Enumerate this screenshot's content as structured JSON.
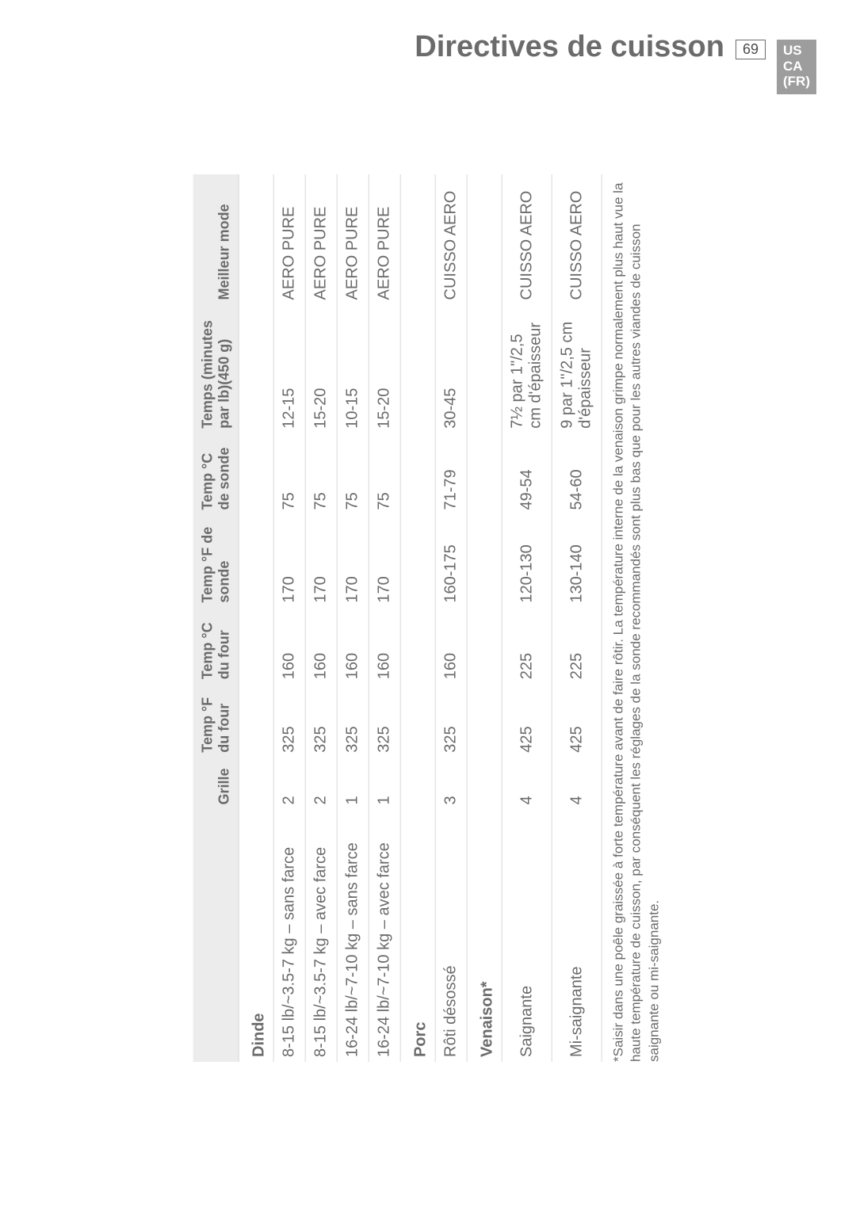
{
  "header": {
    "title": "Directives de cuisson",
    "page_number": "69",
    "locale_lines": [
      "US",
      "CA",
      "(FR)"
    ]
  },
  "columns": {
    "name": "",
    "grille": "Grille",
    "temp_f": "Temp °F du four",
    "temp_c": "Temp °C du four",
    "probe_f": "Temp °F de sonde",
    "probe_c": "Temp °C de sonde",
    "time": "Temps (minutes par lb)(450 g)",
    "mode": "Meilleur mode"
  },
  "sections": [
    {
      "title": "Dinde",
      "rows": [
        {
          "name": "8-15 lb/~3.5-7 kg – sans farce",
          "grille": "2",
          "tf": "325",
          "tc": "160",
          "pf": "170",
          "pc": "75",
          "time": "12-15",
          "mode": "AERO PURE"
        },
        {
          "name": "8-15 lb/~3.5-7 kg – avec farce",
          "grille": "2",
          "tf": "325",
          "tc": "160",
          "pf": "170",
          "pc": "75",
          "time": "15-20",
          "mode": "AERO PURE"
        },
        {
          "name": "16-24 lb/~7-10 kg – sans farce",
          "grille": "1",
          "tf": "325",
          "tc": "160",
          "pf": "170",
          "pc": "75",
          "time": "10-15",
          "mode": "AERO PURE"
        },
        {
          "name": "16-24 lb/~7-10 kg – avec farce",
          "grille": "1",
          "tf": "325",
          "tc": "160",
          "pf": "170",
          "pc": "75",
          "time": "15-20",
          "mode": "AERO PURE"
        }
      ]
    },
    {
      "title": "Porc",
      "rows": [
        {
          "name": "Rôti désossé",
          "grille": "3",
          "tf": "325",
          "tc": "160",
          "pf": "160-175",
          "pc": "71-79",
          "time": "30-45",
          "mode": "CUISSO AERO"
        }
      ]
    },
    {
      "title": "Venaison*",
      "rows": [
        {
          "name": "Saignante",
          "grille": "4",
          "tf": "425",
          "tc": "225",
          "pf": "120-130",
          "pc": "49-54",
          "time": "7½ par 1\"/2,5 cm d'épaisseur",
          "mode": "CUISSO AERO"
        },
        {
          "name": "Mi-saignante",
          "grille": "4",
          "tf": "425",
          "tc": "225",
          "pf": "130-140",
          "pc": "54-60",
          "time": "9 par 1\"/2,5 cm d'épaisseur",
          "mode": "CUISSO AERO"
        }
      ]
    }
  ],
  "footnote": "*Saisir dans une poêle graissée à forte température avant de faire rôtir. La température interne de la venaison grimpe normalement plus haut vue la haute température de cuisson, par conséquent les réglages de la sonde recommandés sont plus bas que pour les autres viandes de cuisson saignante ou mi-saignante."
}
